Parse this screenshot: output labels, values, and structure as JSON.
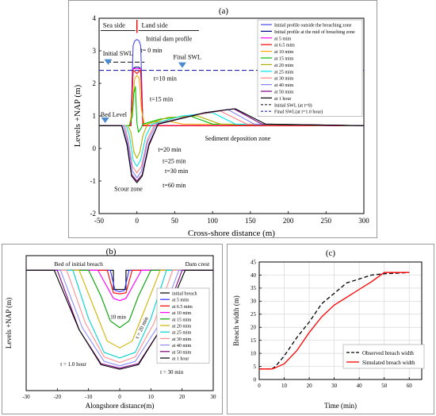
{
  "panels": {
    "a": {
      "label": "(a)"
    },
    "b": {
      "label": "(b)"
    },
    "c": {
      "label": "(c)"
    }
  },
  "chart_data": [
    {
      "id": "a",
      "type": "line",
      "title": "",
      "xlabel": "Cross-shore distance  (m)",
      "ylabel": "Levels +NAP (m)",
      "xlim": [
        -50,
        300
      ],
      "ylim": [
        -2,
        4
      ],
      "xticks": [
        -50,
        0,
        50,
        100,
        150,
        200,
        250,
        300
      ],
      "yticks": [
        -2,
        -1,
        0,
        1,
        2,
        3,
        4
      ],
      "xtick_labels": [
        "-50",
        "0",
        "50",
        "100",
        "150",
        "200",
        "250",
        "300"
      ],
      "ytick_labels": [
        "-2",
        "-1",
        "0",
        "1",
        "2",
        "3",
        "4"
      ],
      "grid": false,
      "legend_position": "top-right",
      "legend": [
        "Initial profile outside the breaching zone",
        "Initial profile at the mid of breaching zone",
        "at 5 mim",
        "at 6.5 mim",
        "at 10 mim",
        "at 15 mim",
        "at 20 mim",
        "at 25 mim",
        "at 30 mim",
        "at 40 mim",
        "at 50 mim",
        "at 1 hour",
        "Initial SWL (at t=0)",
        "Final SWL(at t=1.0 hour)"
      ],
      "annotations": {
        "sea_side": "Sea side",
        "land_side": "Land side",
        "initial_dam_profile": "Initial dam profile",
        "initial_swl": "Initial SWL",
        "final_swl": "Final SWL",
        "t0": "t= 0 min",
        "t10": "t=10 min",
        "t15": "t=15 min",
        "bed_level": "Bed Level",
        "t20": "t=20 min",
        "t25": "t=25 min",
        "t30": "t=30 min",
        "t60": "t=60 min",
        "scour_zone": "Scour zone",
        "sediment_zone": "Sediment deposition zone"
      },
      "series": [
        {
          "name": "Initial profile outside the breaching zone",
          "color": "#4a4af0",
          "x": [
            -50,
            -25,
            -8,
            -5,
            -3,
            0,
            3,
            5,
            8,
            300
          ],
          "y": [
            0.7,
            0.7,
            0.7,
            3.15,
            3.3,
            3.35,
            3.3,
            3.15,
            0.7,
            0.7
          ]
        },
        {
          "name": "Initial profile at the mid of breaching zone",
          "color": "#00008b",
          "x": [
            -50,
            -8,
            -5,
            -2,
            0,
            2,
            5,
            8,
            300
          ],
          "y": [
            0.7,
            0.7,
            2.45,
            2.5,
            2.5,
            2.5,
            2.45,
            0.7,
            0.7
          ]
        },
        {
          "name": "at 5 mim",
          "color": "#ff00ff",
          "x": [
            -50,
            -8,
            -5,
            -1,
            1,
            5,
            8,
            300
          ],
          "y": [
            0.7,
            0.7,
            2.45,
            2.45,
            2.45,
            2.45,
            0.7,
            0.7
          ]
        },
        {
          "name": "at 6.5 mim",
          "color": "#ff0000",
          "x": [
            -50,
            -8,
            -5,
            -2,
            0,
            2,
            5,
            8,
            300
          ],
          "y": [
            0.7,
            0.7,
            2.4,
            2.35,
            2.3,
            2.35,
            2.4,
            0.7,
            0.7
          ]
        },
        {
          "name": "at 10 mim",
          "color": "#ffa500",
          "x": [
            -50,
            -10,
            -6,
            -3,
            0,
            3,
            6,
            10,
            20,
            40,
            60,
            300
          ],
          "y": [
            0.7,
            0.7,
            1.2,
            2.15,
            2.25,
            2.15,
            1.2,
            0.72,
            0.8,
            0.85,
            0.75,
            0.7
          ]
        },
        {
          "name": "at 15 mim",
          "color": "#00c000",
          "x": [
            -50,
            -10,
            -6,
            -4,
            -2,
            0,
            2,
            5,
            8,
            30,
            70,
            100,
            300
          ],
          "y": [
            0.7,
            0.7,
            1.0,
            1.7,
            1.9,
            0.8,
            0.5,
            0.6,
            0.75,
            0.9,
            1.0,
            0.75,
            0.7
          ]
        },
        {
          "name": "at 20 mim",
          "color": "#b0b000",
          "x": [
            -50,
            -12,
            -8,
            -4,
            0,
            4,
            8,
            14,
            40,
            80,
            110,
            300
          ],
          "y": [
            0.7,
            0.7,
            0.5,
            -0.1,
            -0.3,
            -0.1,
            0.4,
            0.75,
            0.95,
            1.0,
            0.75,
            0.7
          ]
        },
        {
          "name": "at 25 mim",
          "color": "#00e6e6",
          "x": [
            -50,
            -14,
            -10,
            -5,
            0,
            5,
            12,
            20,
            60,
            100,
            130,
            300
          ],
          "y": [
            0.7,
            0.7,
            0.4,
            -0.35,
            -0.55,
            -0.35,
            0.4,
            0.75,
            1.0,
            1.1,
            0.75,
            0.7
          ]
        },
        {
          "name": "at 30 mim",
          "color": "#ff8080",
          "x": [
            -50,
            -16,
            -12,
            -6,
            0,
            6,
            14,
            24,
            70,
            110,
            145,
            300
          ],
          "y": [
            0.7,
            0.7,
            0.3,
            -0.55,
            -0.75,
            -0.55,
            0.3,
            0.75,
            1.0,
            1.15,
            0.75,
            0.7
          ]
        },
        {
          "name": "at 40 mim",
          "color": "#8080ff",
          "x": [
            -50,
            -18,
            -12,
            -6,
            0,
            6,
            14,
            26,
            80,
            120,
            155,
            300
          ],
          "y": [
            0.7,
            0.7,
            0.2,
            -0.7,
            -0.9,
            -0.7,
            0.2,
            0.75,
            1.05,
            1.2,
            0.75,
            0.7
          ]
        },
        {
          "name": "at 50 mim",
          "color": "#800080",
          "x": [
            -50,
            -20,
            -13,
            -7,
            0,
            7,
            16,
            28,
            90,
            128,
            165,
            300
          ],
          "y": [
            0.7,
            0.7,
            0.15,
            -0.8,
            -1.0,
            -0.8,
            0.15,
            0.75,
            1.1,
            1.22,
            0.75,
            0.7
          ]
        },
        {
          "name": "at 1 hour",
          "color": "#000000",
          "x": [
            -50,
            -20,
            -13,
            -7,
            0,
            7,
            16,
            28,
            90,
            130,
            170,
            300
          ],
          "y": [
            0.7,
            0.7,
            0.1,
            -0.85,
            -1.05,
            -0.85,
            0.1,
            0.75,
            1.1,
            1.22,
            0.75,
            0.7
          ]
        },
        {
          "name": "Initial SWL (at t=0)",
          "color": "#222222",
          "dash": "6,3",
          "x": [
            -50,
            10
          ],
          "y": [
            2.65,
            2.65
          ]
        },
        {
          "name": "Final SWL(at t=1.0 hour)",
          "color": "#2222aa",
          "dash": "6,3",
          "x": [
            -50,
            300
          ],
          "y": [
            2.4,
            2.4
          ]
        }
      ]
    },
    {
      "id": "b",
      "type": "line",
      "title": "",
      "xlabel": "Alongshore distance(m)",
      "ylabel": "Levels +NAP (m)",
      "xlim": [
        -30,
        30
      ],
      "ylim": [
        -2,
        4
      ],
      "xticks": [
        -30,
        -20,
        -10,
        0,
        10,
        20,
        30
      ],
      "xtick_labels": [
        "-30",
        "-20",
        "-10",
        "0",
        "10",
        "20",
        "30"
      ],
      "yticks": [],
      "grid": false,
      "legend_position": "right",
      "legend": [
        "initial breach",
        "at 5 mim",
        "at 6.5 mim",
        "at 10 mim",
        "at 15 mim",
        "at 20 mim",
        "at 25 mim",
        "at 30 mim",
        "at 40 mim",
        "at 50 mim",
        "at 1 hour"
      ],
      "annotations": {
        "bed_initial_breach": "Bed of initial breach",
        "dam_crest": "Dam crest",
        "t10": "10 min",
        "t20": "t = 20 min",
        "t1h": "t = 1.0 hour",
        "t30": "t = 30 min"
      },
      "series": [
        {
          "name": "initial breach",
          "color": "#000000",
          "x": [
            -30,
            -2,
            -2,
            2,
            2,
            30
          ],
          "y": [
            3.35,
            3.35,
            2.5,
            2.5,
            3.35,
            3.35
          ]
        },
        {
          "name": "at 5 mim",
          "color": "#3030ff",
          "x": [
            -30,
            -3,
            -1.5,
            0,
            1.5,
            3,
            30
          ],
          "y": [
            3.35,
            3.35,
            2.45,
            2.4,
            2.45,
            3.35,
            3.35
          ]
        },
        {
          "name": "at 6.5 mim",
          "color": "#ff0000",
          "x": [
            -30,
            -4,
            -2,
            0,
            2,
            4,
            30
          ],
          "y": [
            3.35,
            3.35,
            2.35,
            2.3,
            2.35,
            3.35,
            3.35
          ]
        },
        {
          "name": "at 10 mim",
          "color": "#ff00ff",
          "x": [
            -30,
            -7,
            -4,
            -2,
            0,
            2,
            4,
            7,
            30
          ],
          "y": [
            3.35,
            3.35,
            2.6,
            2.1,
            2.0,
            2.1,
            2.6,
            3.35,
            3.35
          ]
        },
        {
          "name": "at 15 mim",
          "color": "#00a000",
          "x": [
            -30,
            -10,
            -6,
            -3,
            0,
            3,
            6,
            10,
            30
          ],
          "y": [
            3.35,
            3.35,
            2.2,
            1.1,
            0.8,
            1.1,
            2.2,
            3.35,
            3.35
          ]
        },
        {
          "name": "at 20 mim",
          "color": "#d2b400",
          "x": [
            -30,
            -13,
            -8,
            -4,
            0,
            4,
            8,
            13,
            30
          ],
          "y": [
            3.35,
            3.35,
            1.6,
            0.2,
            -0.1,
            0.2,
            1.6,
            3.35,
            3.35
          ]
        },
        {
          "name": "at 25 mim",
          "color": "#00d0d0",
          "x": [
            -30,
            -15,
            -10,
            -5,
            0,
            5,
            10,
            15,
            30
          ],
          "y": [
            3.35,
            3.35,
            1.2,
            -0.3,
            -0.55,
            -0.3,
            1.2,
            3.35,
            3.35
          ]
        },
        {
          "name": "at 30 mim",
          "color": "#ff9090",
          "x": [
            -30,
            -17,
            -11,
            -5,
            0,
            5,
            11,
            17,
            30
          ],
          "y": [
            3.35,
            3.35,
            1.0,
            -0.5,
            -0.75,
            -0.5,
            1.0,
            3.35,
            3.35
          ]
        },
        {
          "name": "at 40 mim",
          "color": "#9090ff",
          "x": [
            -30,
            -19,
            -12,
            -5,
            0,
            5,
            12,
            19,
            30
          ],
          "y": [
            3.35,
            3.35,
            0.8,
            -0.7,
            -0.9,
            -0.7,
            0.8,
            3.35,
            3.35
          ]
        },
        {
          "name": "at 50 mim",
          "color": "#800080",
          "x": [
            -30,
            -20,
            -13,
            -6,
            0,
            6,
            13,
            20,
            30
          ],
          "y": [
            3.35,
            3.35,
            0.7,
            -0.8,
            -1.0,
            -0.8,
            0.7,
            3.35,
            3.35
          ]
        },
        {
          "name": "at 1 hour",
          "color": "#000000",
          "x": [
            -30,
            -21,
            -13,
            -6,
            0,
            6,
            13,
            21,
            30
          ],
          "y": [
            3.35,
            3.35,
            0.7,
            -0.85,
            -1.05,
            -0.85,
            0.7,
            3.35,
            3.35
          ]
        }
      ]
    },
    {
      "id": "c",
      "type": "line",
      "title": "",
      "xlabel": "Time (min)",
      "ylabel": "Breach width (m)",
      "xlim": [
        0,
        65
      ],
      "ylim": [
        0,
        45
      ],
      "xticks": [
        0,
        10,
        20,
        30,
        40,
        50,
        60
      ],
      "yticks": [
        0,
        5,
        10,
        15,
        20,
        25,
        30,
        35,
        40,
        45
      ],
      "xtick_labels": [
        "0",
        "10",
        "20",
        "30",
        "40",
        "50",
        "60"
      ],
      "ytick_labels": [
        "0",
        "5",
        "10",
        "15",
        "20",
        "25",
        "30",
        "35",
        "40",
        "45"
      ],
      "grid": true,
      "legend_position": "bottom-right",
      "series": [
        {
          "name": "Observed breach width",
          "color": "#000000",
          "dash": "5,3",
          "x": [
            0,
            5,
            6.5,
            10,
            15,
            20,
            25,
            30,
            35,
            40,
            45,
            50,
            55,
            60
          ],
          "y": [
            4,
            4,
            5,
            9,
            16,
            22,
            29,
            33,
            37,
            38.5,
            40,
            40.5,
            40.7,
            41
          ]
        },
        {
          "name": "Simulated breach width",
          "color": "#ff0000",
          "x": [
            0,
            5,
            6.5,
            10,
            15,
            20,
            25,
            30,
            35,
            40,
            45,
            50,
            55,
            60
          ],
          "y": [
            4,
            4,
            4.5,
            6,
            11,
            18,
            24,
            28.5,
            31.5,
            34.5,
            37.5,
            41,
            41,
            41
          ]
        }
      ]
    }
  ]
}
